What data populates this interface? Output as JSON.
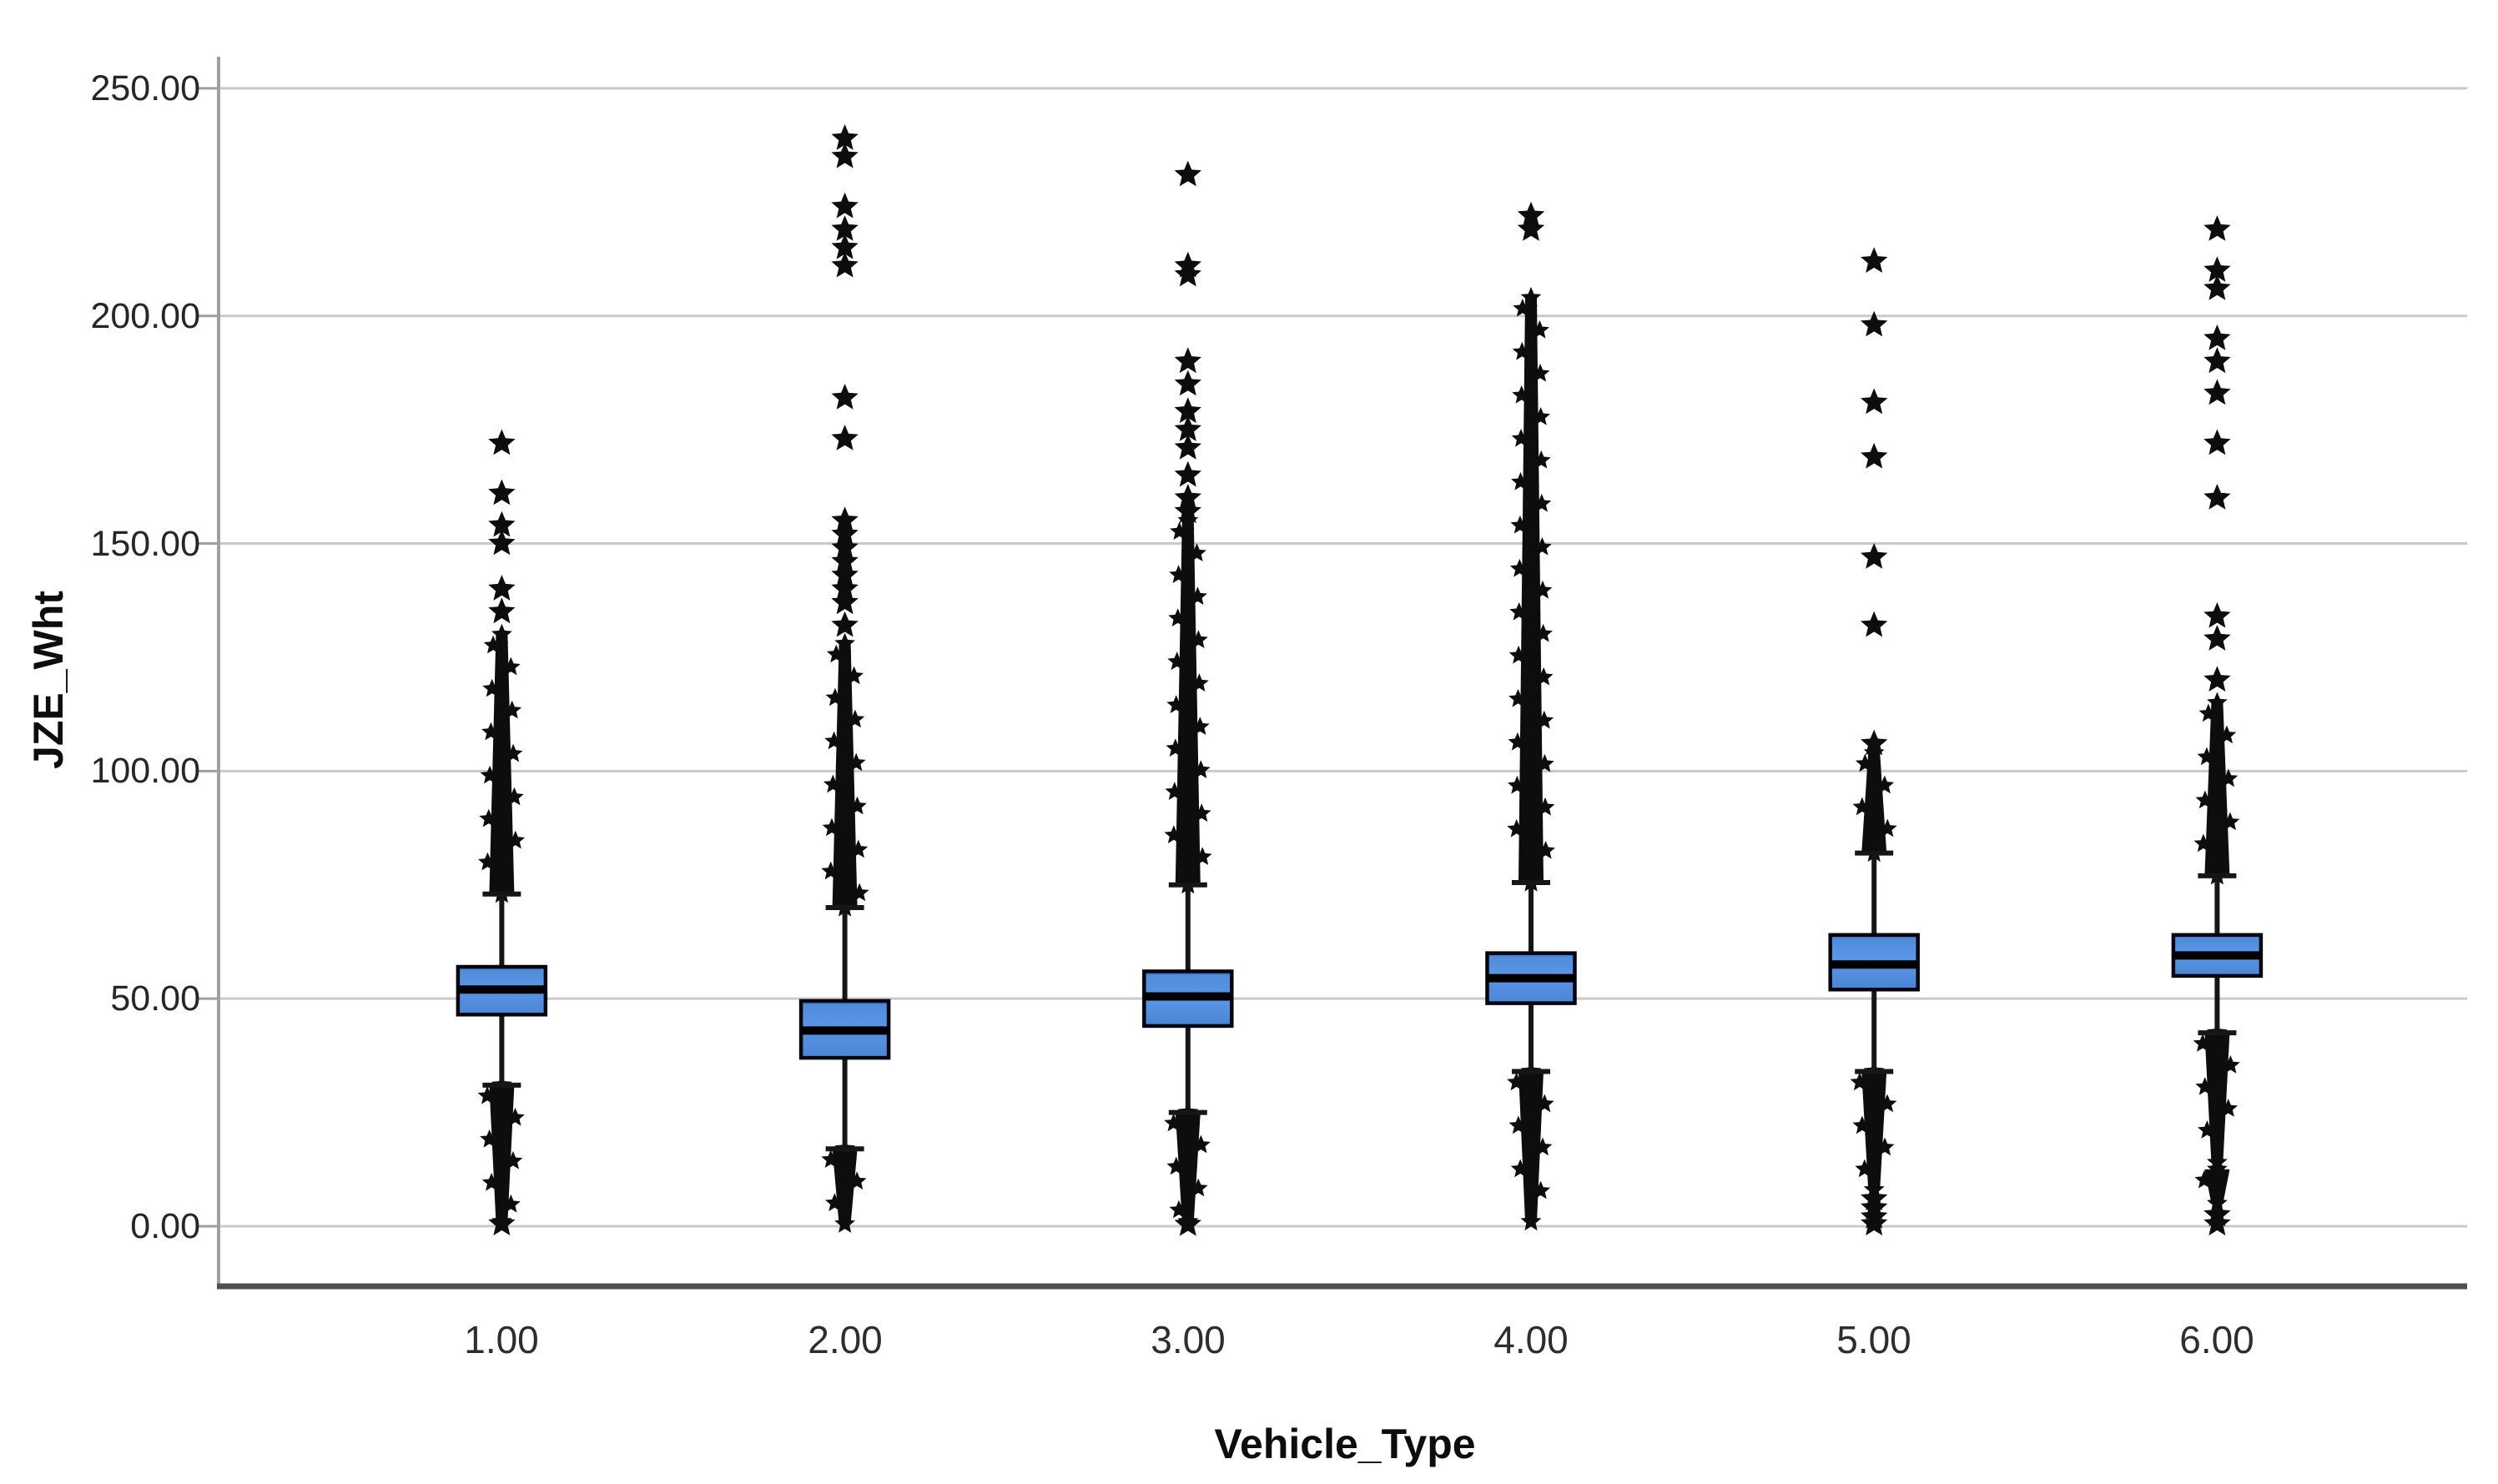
{
  "chart_data": {
    "type": "boxplot",
    "title": "",
    "xlabel": "Vehicle_Type",
    "ylabel": "JZE_Wht",
    "x_categories": [
      "1.00",
      "2.00",
      "3.00",
      "4.00",
      "5.00",
      "6.00"
    ],
    "y_tick_labels": [
      "250.00",
      "200.00",
      "150.00",
      "100.00",
      "50.00",
      "0.00"
    ],
    "y_tick_values": [
      250,
      200,
      150,
      100,
      50,
      0
    ],
    "ylim": [
      0,
      250
    ],
    "grid": true,
    "legend": "none",
    "boxes": [
      {
        "category": "1.00",
        "q1": 46.5,
        "median": 52,
        "q3": 57,
        "whisker_low": 31,
        "whisker_high": 73,
        "dense_outliers_low": [
          [
            1,
            31
          ]
        ],
        "dense_outliers_high": [
          [
            73,
            130
          ]
        ],
        "extreme_outliers_low": [
          0.5
        ],
        "extreme_outliers_high": [
          135,
          140,
          150,
          154,
          161,
          172
        ]
      },
      {
        "category": "2.00",
        "q1": 37,
        "median": 43,
        "q3": 49.5,
        "whisker_low": 17,
        "whisker_high": 70,
        "dense_outliers_low": [
          [
            0.5,
            17
          ]
        ],
        "dense_outliers_high": [
          [
            70,
            128
          ]
        ],
        "extreme_outliers_low": [],
        "extreme_outliers_high": [
          132,
          137,
          140,
          143,
          146,
          149,
          152,
          155,
          173,
          182,
          211,
          215,
          219,
          224,
          235,
          239
        ]
      },
      {
        "category": "3.00",
        "q1": 44,
        "median": 50.5,
        "q3": 56,
        "whisker_low": 25,
        "whisker_high": 75,
        "dense_outliers_low": [
          [
            1,
            25
          ]
        ],
        "dense_outliers_high": [
          [
            75,
            155
          ]
        ],
        "extreme_outliers_low": [
          0.4
        ],
        "extreme_outliers_high": [
          157,
          160,
          165,
          171,
          175,
          179,
          185,
          190,
          209,
          211,
          231
        ]
      },
      {
        "category": "4.00",
        "q1": 49,
        "median": 54.5,
        "q3": 60,
        "whisker_low": 34,
        "whisker_high": 75.5,
        "dense_outliers_low": [
          [
            1,
            34
          ]
        ],
        "dense_outliers_high": [
          [
            75.5,
            204
          ]
        ],
        "extreme_outliers_low": [],
        "extreme_outliers_high": [
          219,
          222
        ]
      },
      {
        "category": "5.00",
        "q1": 52,
        "median": 57.5,
        "q3": 64,
        "whisker_low": 34,
        "whisker_high": 82,
        "dense_outliers_low": [
          [
            8,
            34
          ]
        ],
        "dense_outliers_high": [
          [
            82,
            104
          ]
        ],
        "extreme_outliers_low": [
          6,
          4,
          2,
          0.5
        ],
        "extreme_outliers_high": [
          106,
          132,
          147,
          169,
          181,
          198,
          212
        ]
      },
      {
        "category": "6.00",
        "q1": 55,
        "median": 59.5,
        "q3": 64,
        "whisker_low": 42.5,
        "whisker_high": 77,
        "dense_outliers_low": [
          [
            14,
            42.5
          ],
          [
            5,
            12.5
          ]
        ],
        "dense_outliers_high": [
          [
            77,
            115
          ]
        ],
        "extreme_outliers_low": [
          2.5,
          0.5
        ],
        "extreme_outliers_high": [
          120,
          129,
          134,
          160,
          172,
          183,
          190,
          195,
          206,
          210,
          219
        ]
      }
    ],
    "colors": {
      "box_fill": "#5b96e6",
      "box_fill_dark_top": "#2c5d92",
      "box_border": "#05050f",
      "median": "#000000",
      "whisker": "#161616",
      "outlier": "#0d0d0d",
      "gridline": "#c9c9c9",
      "axis_left": "#9f9f9f",
      "axis_bottom": "#4f4f4f",
      "tick_text": "#262626",
      "background": "#ffffff"
    }
  }
}
